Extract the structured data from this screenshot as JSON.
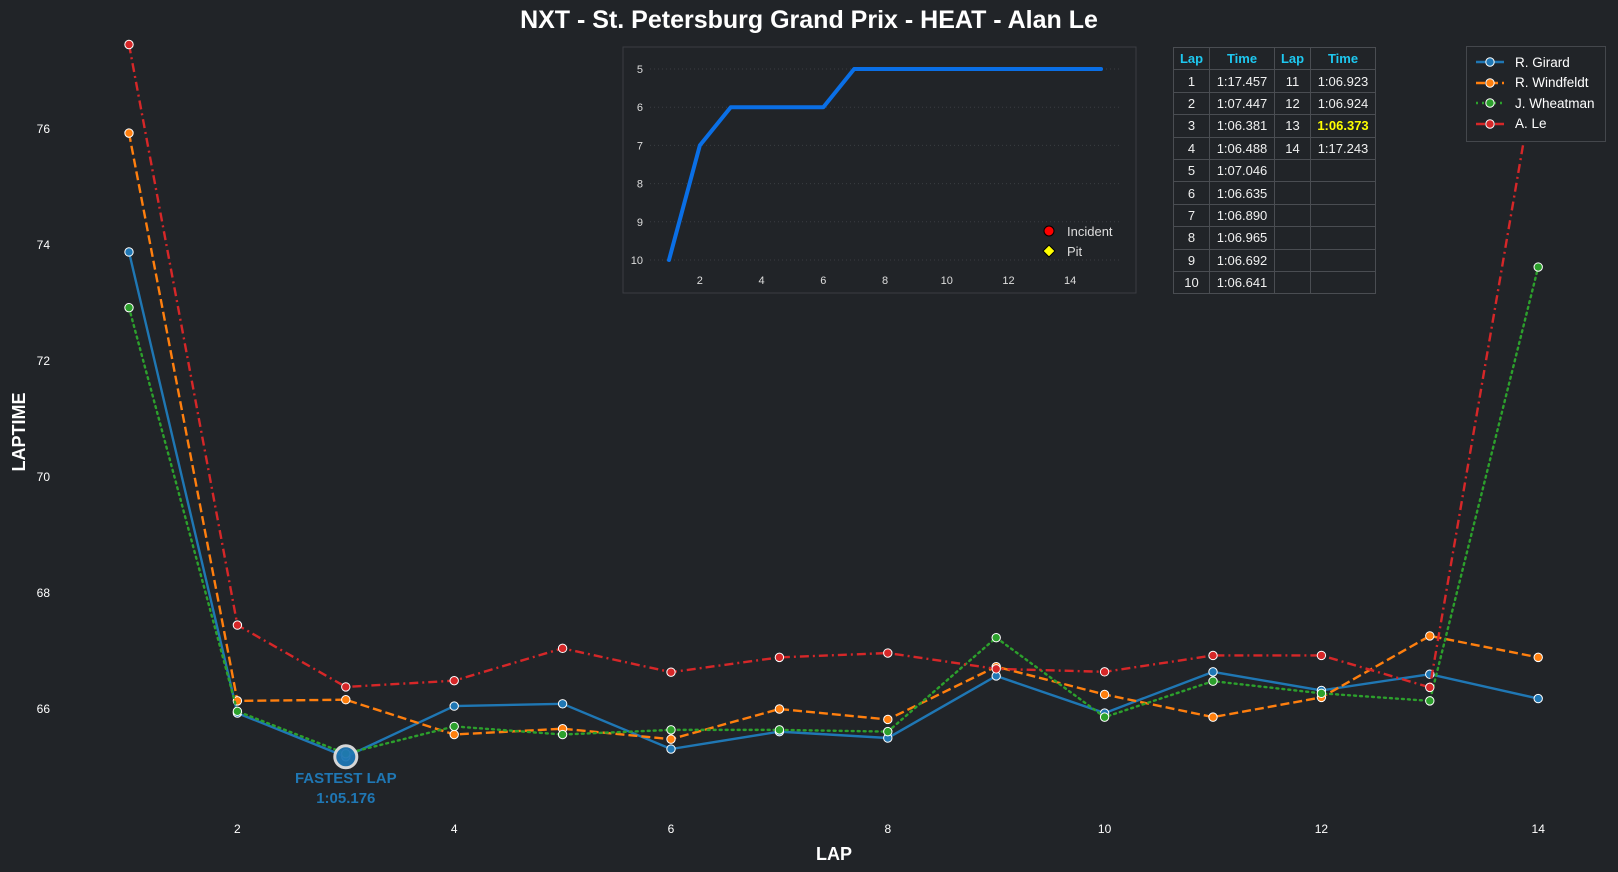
{
  "chart_data": [
    {
      "type": "line",
      "title": "NXT - St. Petersburg Grand Prix - HEAT - Alan Le",
      "xlabel": "LAP",
      "ylabel": "LAPTIME",
      "xlim": [
        0.62,
        14.3
      ],
      "ylim": [
        64.1,
        78.2
      ],
      "xticks": [
        2,
        4,
        6,
        8,
        10,
        12,
        14
      ],
      "yticks": [
        66,
        68,
        70,
        72,
        74,
        76
      ],
      "legend": "top-right",
      "x": [
        1,
        2,
        3,
        4,
        5,
        6,
        7,
        8,
        9,
        10,
        11,
        12,
        13,
        14
      ],
      "series": [
        {
          "name": "R. Girard",
          "color": "#1f77b4",
          "dash": "solid",
          "values": [
            73.88,
            65.93,
            65.176,
            66.05,
            66.09,
            65.31,
            65.61,
            65.5,
            66.57,
            65.93,
            66.64,
            66.32,
            66.6,
            66.18
          ]
        },
        {
          "name": "R. Windfeldt",
          "color": "#ff7f0e",
          "dash": "dashed",
          "values": [
            75.93,
            66.14,
            66.16,
            65.56,
            65.66,
            65.48,
            66.0,
            65.82,
            66.73,
            66.25,
            65.86,
            66.2,
            67.26,
            66.89
          ]
        },
        {
          "name": "J. Wheatman",
          "color": "#2ca02c",
          "dash": "dotted",
          "values": [
            72.92,
            65.96,
            65.23,
            65.7,
            65.56,
            65.64,
            65.64,
            65.61,
            67.23,
            65.86,
            66.48,
            66.27,
            66.14,
            73.62
          ]
        },
        {
          "name": "A. Le",
          "color": "#d62728",
          "dash": "dashdot",
          "values": [
            77.457,
            67.447,
            66.381,
            66.488,
            67.046,
            66.635,
            66.89,
            66.965,
            66.692,
            66.641,
            66.923,
            66.924,
            66.373,
            77.243
          ]
        }
      ],
      "annotation": {
        "lap": 3,
        "value": 65.176,
        "label": "FASTEST LAP",
        "time": "1:05.176",
        "color": "#1f77b4"
      }
    },
    {
      "type": "line",
      "title": "",
      "xlabel": "",
      "ylabel": "",
      "xlim": [
        0.5,
        15.5
      ],
      "ylim": [
        10,
        5
      ],
      "inverted_y": true,
      "xticks": [
        2,
        4,
        6,
        8,
        10,
        12,
        14
      ],
      "yticks": [
        5,
        6,
        7,
        8,
        9,
        10
      ],
      "x": [
        1,
        2,
        3,
        4,
        5,
        6,
        7,
        8,
        9,
        10,
        11,
        12,
        13,
        14,
        15
      ],
      "values": [
        10,
        7,
        6,
        6,
        6,
        6,
        5,
        5,
        5,
        5,
        5,
        5,
        5,
        5,
        5
      ],
      "color": "#0a6fe6",
      "legend": "bottom-right",
      "legend_entries": [
        {
          "label": "Incident",
          "color": "#ff0000",
          "marker": "circle"
        },
        {
          "label": "Pit",
          "color": "#ffff00",
          "marker": "diamond"
        }
      ]
    }
  ],
  "lap_table": {
    "headers": [
      "Lap",
      "Time",
      "Lap",
      "Time"
    ],
    "rows": [
      [
        "1",
        "1:17.457",
        "11",
        "1:06.923"
      ],
      [
        "2",
        "1:07.447",
        "12",
        "1:06.924"
      ],
      [
        "3",
        "1:06.381",
        "13",
        "1:06.373"
      ],
      [
        "4",
        "1:06.488",
        "14",
        "1:17.243"
      ],
      [
        "5",
        "1:07.046",
        "",
        ""
      ],
      [
        "6",
        "1:06.635",
        "",
        ""
      ],
      [
        "7",
        "1:06.890",
        "",
        ""
      ],
      [
        "8",
        "1:06.965",
        "",
        ""
      ],
      [
        "9",
        "1:06.692",
        "",
        ""
      ],
      [
        "10",
        "1:06.641",
        "",
        ""
      ]
    ],
    "best_time": "1:06.373",
    "highlight_color": "#ffff00"
  }
}
